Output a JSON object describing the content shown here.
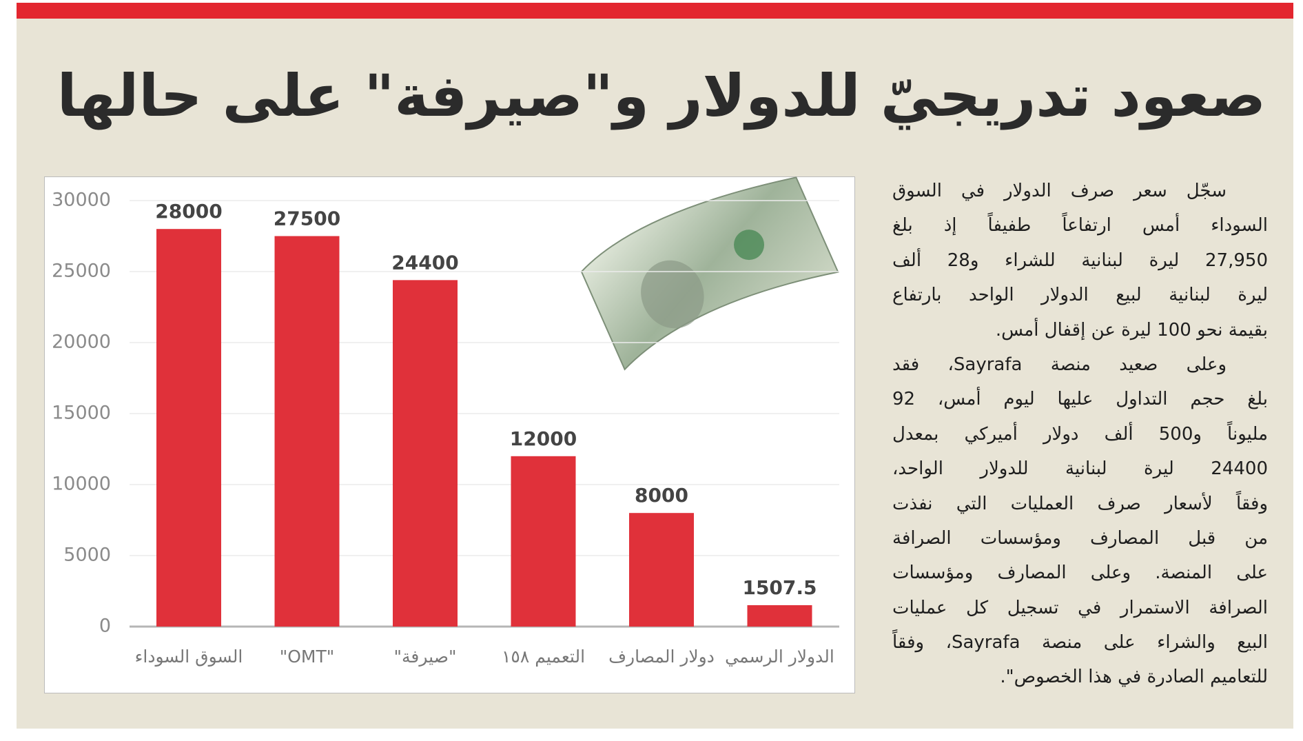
{
  "header": {
    "title": "صعود تدريجيّ للدولار و\"صيرفة\" على حالها"
  },
  "chart_data": {
    "type": "bar",
    "categories": [
      "السوق السوداء",
      "\"OMT\"",
      "\"صيرفة\"",
      "التعميم ١٥٨",
      "دولار المصارف",
      "الدولار الرسمي"
    ],
    "values": [
      28000,
      27500,
      24400,
      12000,
      8000,
      1507.5
    ],
    "color": "#e0313a",
    "ylim": [
      0,
      30000
    ],
    "yticks": [
      0,
      5000,
      10000,
      15000,
      20000,
      25000,
      30000
    ],
    "grid": true
  },
  "article": {
    "paragraphs": [
      [
        "سجّل سعر صرف الدولار في السوق",
        "السوداء أمس ارتفاعاً طفيفاً إذ بلغ",
        "27,950 ليرة لبنانية للشراء و28 ألف",
        "ليرة لبنانية لبيع الدولار الواحد بارتفاع",
        "بقيمة نحو 100 ليرة عن إقفال أمس."
      ],
      [
        "وعلى صعيد منصة Sayrafa، فقد",
        "بلغ حجم التداول عليها ليوم أمس، 92",
        "مليوناً و500 ألف دولار أميركي بمعدل",
        "24400 ليرة لبنانية للدولار الواحد،",
        "وفقاً لأسعار صرف العمليات التي نفذت",
        "من قبل المصارف ومؤسسات الصرافة",
        "على المنصة. وعلى المصارف ومؤسسات",
        "الصرافة الاستمرار في تسجيل كل عمليات",
        "البيع والشراء على منصة Sayrafa، وفقاً",
        "للتعاميم الصادرة في هذا الخصوص\"."
      ]
    ]
  }
}
